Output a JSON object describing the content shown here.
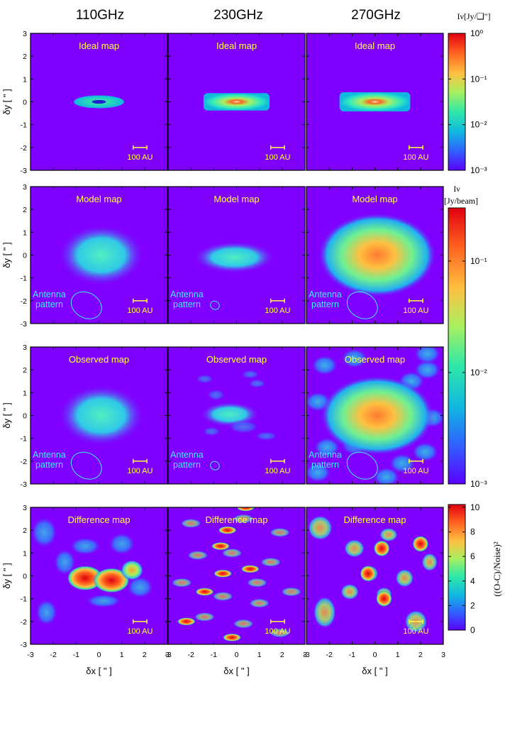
{
  "chart_data": {
    "type": "heatmap",
    "columns": [
      "110GHz",
      "230GHz",
      "270GHz"
    ],
    "rows": [
      {
        "label": "Ideal map",
        "colorbar_group": "ideal"
      },
      {
        "label": "Model map",
        "colorbar_group": "beam"
      },
      {
        "label": "Observed map",
        "colorbar_group": "beam"
      },
      {
        "label": "Difference map",
        "colorbar_group": "diff"
      }
    ],
    "scale_bar_label": "100 AU",
    "antenna_label_line1": "Antenna",
    "antenna_label_line2": "pattern",
    "xlabel": "δx [ \" ]",
    "ylabel": "δy [ \" ]",
    "xlim": [
      -3,
      3
    ],
    "ylim": [
      -3,
      3
    ],
    "x_ticks": [
      "-3",
      "-2",
      "-1",
      "0",
      "1",
      "2",
      "3"
    ],
    "y_ticks": [
      "3",
      "2",
      "1",
      "0",
      "-1",
      "-2",
      "-3"
    ],
    "colorbars": {
      "ideal": {
        "title": "Iν[Jy/❑\"]",
        "scale": "log",
        "range": [
          0.001,
          1
        ],
        "tick_labels": [
          "10⁰",
          "10⁻¹",
          "10⁻²",
          "10⁻³"
        ]
      },
      "beam": {
        "title_line1": "Iν",
        "title_line2": "[Jy/beam]",
        "scale": "log",
        "range": [
          0.001,
          0.3
        ],
        "tick_labels": [
          "10⁻¹",
          "10⁻²",
          "10⁻³"
        ]
      },
      "diff": {
        "title": "((O-C)/Noise)²",
        "scale": "linear",
        "range": [
          0,
          10
        ],
        "tick_labels": [
          "10",
          "8",
          "6",
          "4",
          "2",
          "0"
        ]
      }
    },
    "colormap": [
      "#5a00ff",
      "#3060ff",
      "#10b8e0",
      "#30e8a8",
      "#a8f060",
      "#ffc040",
      "#ff6020",
      "#e00010"
    ],
    "background_color": "#7f00ff",
    "label_color": "#ffff40",
    "antenna_color": "#40f0ff"
  }
}
